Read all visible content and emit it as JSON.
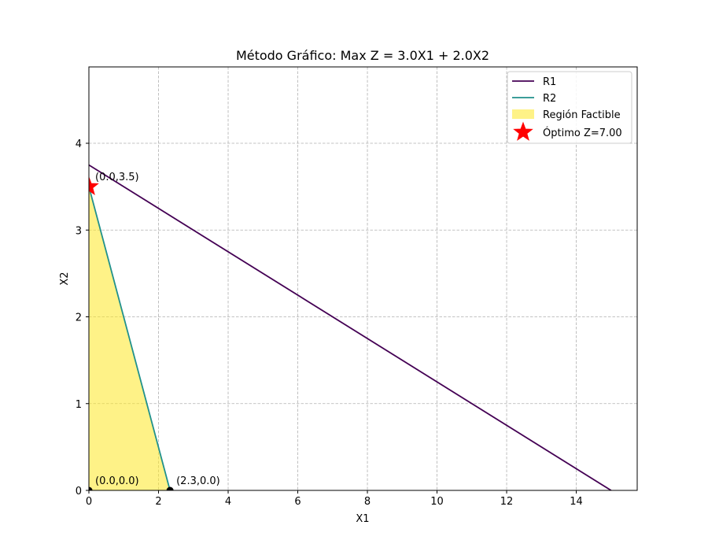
{
  "chart_data": {
    "type": "line",
    "title": "Método Gráfico: Max Z = 3.0X1 + 2.0X2",
    "xlabel": "X1",
    "ylabel": "X2",
    "xlim": [
      0,
      15.75
    ],
    "ylim": [
      0,
      4.88
    ],
    "xticks": [
      0,
      2,
      4,
      6,
      8,
      10,
      12,
      14
    ],
    "yticks": [
      0,
      1,
      2,
      3,
      4
    ],
    "grid": true,
    "legend_position": "top-right",
    "series": [
      {
        "name": "R1",
        "type": "line",
        "color": "#440154",
        "x": [
          0,
          15
        ],
        "y": [
          3.75,
          0
        ]
      },
      {
        "name": "R2",
        "type": "line",
        "color": "#21918c",
        "x": [
          0,
          2.33
        ],
        "y": [
          3.5,
          0
        ]
      }
    ],
    "feasible_region": {
      "name": "Región Factible",
      "color": "#fde725",
      "vertices": [
        [
          0,
          0
        ],
        [
          2.33,
          0
        ],
        [
          0,
          3.5
        ]
      ]
    },
    "vertices": [
      {
        "x": 0,
        "y": 0,
        "label": "(0.0,0.0)"
      },
      {
        "x": 2.33,
        "y": 0,
        "label": "(2.3,0.0)"
      },
      {
        "x": 0,
        "y": 3.5,
        "label": "(0.0,3.5)"
      }
    ],
    "optimum": {
      "name": "Óptimo Z=7.00",
      "x": 0,
      "y": 3.5,
      "color": "#ff0000"
    }
  }
}
